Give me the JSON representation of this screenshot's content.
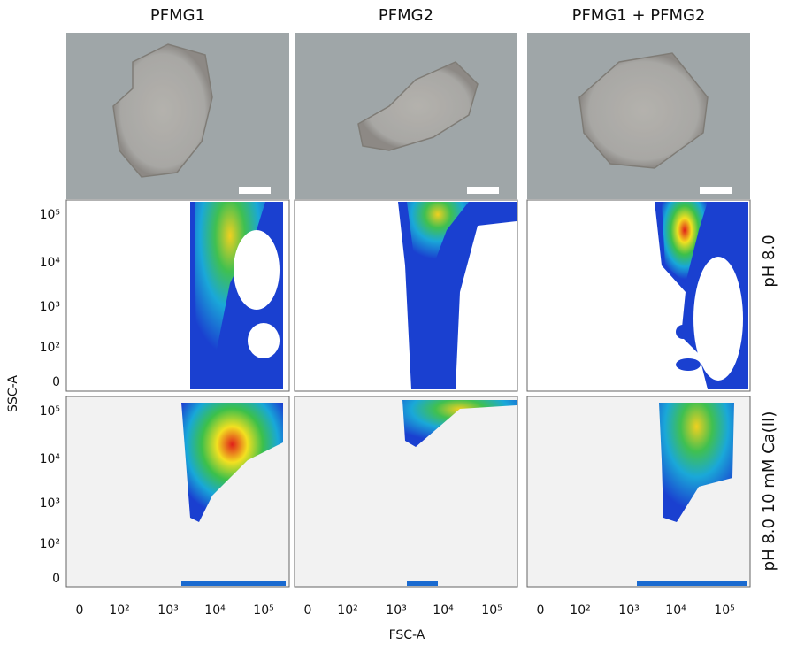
{
  "columns": [
    "PFMG1",
    "PFMG2",
    "PFMG1 + PFMG2"
  ],
  "rows": [
    "pH 8.0",
    "pH 8.0 10 mM Ca(II)"
  ],
  "x_axis": {
    "label": "FSC-A",
    "ticks": [
      "0",
      "10²",
      "10³",
      "10⁴",
      "10⁵"
    ]
  },
  "y_axis": {
    "label": "SSC-A",
    "ticks": [
      "10⁵",
      "10⁴",
      "10³",
      "10²",
      "0"
    ]
  }
}
